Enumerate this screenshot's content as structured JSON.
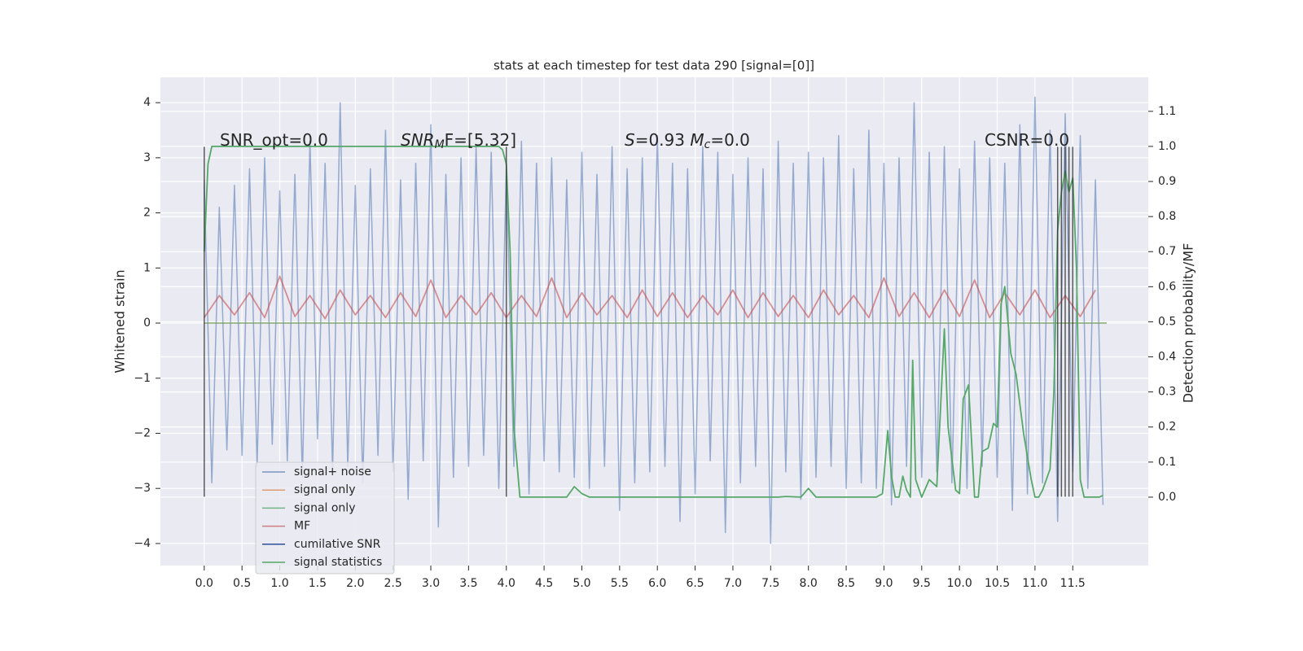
{
  "chart_data": {
    "type": "line",
    "title": "stats at each timestep for test data 290 [signal=[0]]",
    "ylabel": "Whitened strain",
    "y2label": "Detection probability/MF",
    "xlim": [
      -0.58,
      12.5
    ],
    "ylim": [
      -4.4,
      4.46
    ],
    "y2lim": [
      -0.195,
      1.197
    ],
    "grid": true,
    "legend": "lower left",
    "xticks": [
      {
        "value": 0,
        "label": "0.0"
      },
      {
        "value": 0.5,
        "label": "0.5"
      },
      {
        "value": 1,
        "label": "1.0"
      },
      {
        "value": 1.5,
        "label": "1.5"
      },
      {
        "value": 2,
        "label": "2.0"
      },
      {
        "value": 2.5,
        "label": "2.5"
      },
      {
        "value": 3,
        "label": "3.0"
      },
      {
        "value": 3.5,
        "label": "3.5"
      },
      {
        "value": 4,
        "label": "4.0"
      },
      {
        "value": 4.5,
        "label": "4.5"
      },
      {
        "value": 5,
        "label": "5.0"
      },
      {
        "value": 5.5,
        "label": "5.5"
      },
      {
        "value": 6,
        "label": "6.0"
      },
      {
        "value": 6.5,
        "label": "6.5"
      },
      {
        "value": 7,
        "label": "7.0"
      },
      {
        "value": 7.5,
        "label": "7.5"
      },
      {
        "value": 8,
        "label": "8.0"
      },
      {
        "value": 8.5,
        "label": "8.5"
      },
      {
        "value": 9,
        "label": "9.0"
      },
      {
        "value": 9.5,
        "label": "9.5"
      },
      {
        "value": 10,
        "label": "10.0"
      },
      {
        "value": 10.5,
        "label": "10.5"
      },
      {
        "value": 11,
        "label": "11.0"
      },
      {
        "value": 11.5,
        "label": "11.5"
      }
    ],
    "yticks": [
      {
        "value": -4,
        "label": "−4"
      },
      {
        "value": -3,
        "label": "−3"
      },
      {
        "value": -2,
        "label": "−2"
      },
      {
        "value": -1,
        "label": "−1"
      },
      0,
      1,
      2,
      3,
      4
    ],
    "y2ticks": [
      {
        "value": 0,
        "label": "0.0"
      },
      {
        "value": 0.1,
        "label": "0.1"
      },
      {
        "value": 0.2,
        "label": "0.2"
      },
      {
        "value": 0.3,
        "label": "0.3"
      },
      {
        "value": 0.4,
        "label": "0.4"
      },
      {
        "value": 0.5,
        "label": "0.5"
      },
      {
        "value": 0.6,
        "label": "0.6"
      },
      {
        "value": 0.7,
        "label": "0.7"
      },
      {
        "value": 0.8,
        "label": "0.8"
      },
      {
        "value": 0.9,
        "label": "0.9"
      },
      {
        "value": 1,
        "label": "1.0"
      },
      {
        "value": 1.1,
        "label": "1.1"
      }
    ],
    "annotations": [
      [
        "SNR_opt=0.0"
      ],
      [
        "SNR",
        "M",
        "F=[5.32]"
      ],
      [
        "S",
        "=0.93   ",
        "M",
        "c",
        "=0.0"
      ],
      [
        "CSNR=0.0"
      ]
    ],
    "vlines": {
      "x": [
        0,
        4.0,
        11.3,
        11.35,
        11.4,
        11.45,
        11.5
      ],
      "ymin": -3.15,
      "ymax": 3.2,
      "color": "#333333"
    },
    "series": [
      {
        "name": "signal+ noise",
        "color": "#4c72b0",
        "x": [
          0,
          0.1,
          0.2,
          0.3,
          0.4,
          0.5,
          0.6,
          0.7,
          0.8,
          0.9,
          1,
          1.1,
          1.2,
          1.3,
          1.4,
          1.5,
          1.6,
          1.7,
          1.8,
          1.9,
          2,
          2.1,
          2.2,
          2.3,
          2.4,
          2.5,
          2.6,
          2.7,
          2.8,
          2.9,
          3,
          3.1,
          3.2,
          3.3,
          3.4,
          3.5,
          3.6,
          3.7,
          3.8,
          3.9,
          4,
          4.1,
          4.2,
          4.3,
          4.4,
          4.5,
          4.6,
          4.7,
          4.8,
          4.9,
          5,
          5.1,
          5.2,
          5.3,
          5.4,
          5.5,
          5.6,
          5.7,
          5.8,
          5.9,
          6,
          6.1,
          6.2,
          6.3,
          6.4,
          6.5,
          6.6,
          6.7,
          6.8,
          6.9,
          7,
          7.1,
          7.2,
          7.3,
          7.4,
          7.5,
          7.6,
          7.7,
          7.8,
          7.9,
          8,
          8.1,
          8.2,
          8.3,
          8.4,
          8.5,
          8.6,
          8.7,
          8.8,
          8.9,
          9,
          9.1,
          9.2,
          9.3,
          9.4,
          9.5,
          9.6,
          9.7,
          9.8,
          9.9,
          10,
          10.1,
          10.2,
          10.3,
          10.4,
          10.5,
          10.6,
          10.7,
          10.8,
          10.9,
          11,
          11.1,
          11.2,
          11.3,
          11.4,
          11.5,
          11.6,
          11.7,
          11.8,
          11.9
        ],
        "values": [
          2.6,
          -2.9,
          2.1,
          -2.3,
          2.5,
          -2.4,
          2.8,
          -2.6,
          3.0,
          -2.2,
          2.4,
          -2.5,
          2.7,
          -2.8,
          3.3,
          -2.1,
          2.9,
          -2.7,
          4.0,
          -2.6,
          2.5,
          -2.9,
          2.8,
          -2.4,
          3.5,
          -2.7,
          2.6,
          -3.2,
          2.9,
          -2.5,
          3.6,
          -3.7,
          2.7,
          -2.8,
          3.0,
          -2.6,
          3.2,
          -2.4,
          3.1,
          -3.0,
          2.8,
          -2.6,
          3.3,
          -3.1,
          2.9,
          -2.5,
          3.0,
          -2.7,
          2.6,
          -2.8,
          3.1,
          -3.0,
          2.7,
          -2.6,
          3.2,
          -3.4,
          2.8,
          -2.9,
          3.0,
          -2.7,
          3.4,
          -2.6,
          2.9,
          -3.6,
          2.8,
          -3.1,
          3.2,
          -2.5,
          3.1,
          -3.8,
          2.7,
          -2.9,
          3.0,
          -2.6,
          2.8,
          -4.0,
          3.3,
          -2.7,
          2.9,
          -3.2,
          3.1,
          -2.8,
          3.0,
          -2.6,
          3.4,
          -3.0,
          2.8,
          -2.9,
          3.5,
          -3.0,
          2.9,
          -3.3,
          3.0,
          -2.6,
          4.0,
          -2.8,
          3.1,
          -2.7,
          3.2,
          -2.9,
          2.8,
          -3.0,
          3.3,
          -2.6,
          3.0,
          -2.8,
          2.9,
          -3.4,
          3.6,
          -3.1,
          4.1,
          -2.9,
          3.5,
          -3.6,
          3.8,
          -2.7,
          3.4,
          -3.0,
          2.6,
          -3.3
        ]
      },
      {
        "name": "signal only",
        "color": "#dd8452",
        "x": [
          0,
          11.95
        ],
        "values": [
          0,
          0
        ]
      },
      {
        "name": "signal only",
        "color": "#55a868",
        "x": [
          0,
          11.95
        ],
        "values": [
          0,
          0
        ]
      },
      {
        "name": "MF",
        "color": "#c44e52",
        "x": [
          0,
          0.2,
          0.4,
          0.6,
          0.8,
          1,
          1.2,
          1.4,
          1.6,
          1.8,
          2,
          2.2,
          2.4,
          2.6,
          2.8,
          3,
          3.2,
          3.4,
          3.6,
          3.8,
          4,
          4.2,
          4.4,
          4.6,
          4.8,
          5,
          5.2,
          5.4,
          5.6,
          5.8,
          6,
          6.2,
          6.4,
          6.6,
          6.8,
          7,
          7.2,
          7.4,
          7.6,
          7.8,
          8,
          8.2,
          8.4,
          8.6,
          8.8,
          9,
          9.2,
          9.4,
          9.6,
          9.8,
          10,
          10.2,
          10.4,
          10.6,
          10.8,
          11,
          11.2,
          11.4,
          11.6,
          11.8
        ],
        "values": [
          0.1,
          0.5,
          0.15,
          0.55,
          0.1,
          0.85,
          0.12,
          0.5,
          0.08,
          0.6,
          0.15,
          0.5,
          0.1,
          0.55,
          0.12,
          0.78,
          0.1,
          0.5,
          0.15,
          0.55,
          0.1,
          0.5,
          0.12,
          0.82,
          0.1,
          0.55,
          0.15,
          0.5,
          0.1,
          0.6,
          0.12,
          0.55,
          0.1,
          0.5,
          0.15,
          0.6,
          0.1,
          0.55,
          0.12,
          0.5,
          0.1,
          0.6,
          0.15,
          0.5,
          0.1,
          0.82,
          0.12,
          0.55,
          0.1,
          0.6,
          0.12,
          0.78,
          0.1,
          0.55,
          0.15,
          0.6,
          0.1,
          0.5,
          0.12,
          0.6
        ]
      },
      {
        "name": "cumilative SNR",
        "color": "#2f4f9e"
      },
      {
        "name": "signal statistics",
        "color": "#55a868",
        "axis": "y2",
        "x": [
          0,
          0.05,
          0.1,
          1,
          2,
          3,
          3.9,
          3.95,
          4.0,
          4.05,
          4.1,
          4.18,
          4.8,
          4.9,
          5.0,
          5.1,
          7.6,
          7.7,
          7.9,
          8.0,
          8.1,
          8.9,
          8.98,
          9.05,
          9.1,
          9.15,
          9.2,
          9.25,
          9.3,
          9.35,
          9.38,
          9.42,
          9.5,
          9.6,
          9.7,
          9.8,
          9.85,
          9.95,
          10.0,
          10.05,
          10.12,
          10.2,
          10.25,
          10.3,
          10.38,
          10.45,
          10.5,
          10.55,
          10.6,
          10.68,
          10.75,
          10.85,
          10.95,
          11.0,
          11.05,
          11.1,
          11.2,
          11.25,
          11.3,
          11.35,
          11.4,
          11.45,
          11.5,
          11.55,
          11.6,
          11.65,
          11.85,
          11.9
        ],
        "values": [
          0.7,
          0.95,
          1.0,
          1.0,
          1.0,
          1.0,
          1.0,
          0.99,
          0.95,
          0.7,
          0.2,
          0.0,
          0.0,
          0.03,
          0.01,
          0.0,
          0.0,
          0.002,
          0.0,
          0.025,
          0.0,
          0.0,
          0.01,
          0.19,
          0.06,
          0.0,
          0.0,
          0.06,
          0.02,
          0.0,
          0.39,
          0.05,
          0.0,
          0.05,
          0.03,
          0.48,
          0.2,
          0.02,
          0.01,
          0.28,
          0.32,
          0.0,
          0.0,
          0.13,
          0.14,
          0.21,
          0.2,
          0.55,
          0.6,
          0.41,
          0.35,
          0.18,
          0.05,
          0.0,
          0.0,
          0.02,
          0.08,
          0.3,
          0.76,
          0.87,
          0.93,
          0.87,
          0.91,
          0.65,
          0.05,
          0.0,
          0.0,
          0.005
        ]
      }
    ]
  }
}
